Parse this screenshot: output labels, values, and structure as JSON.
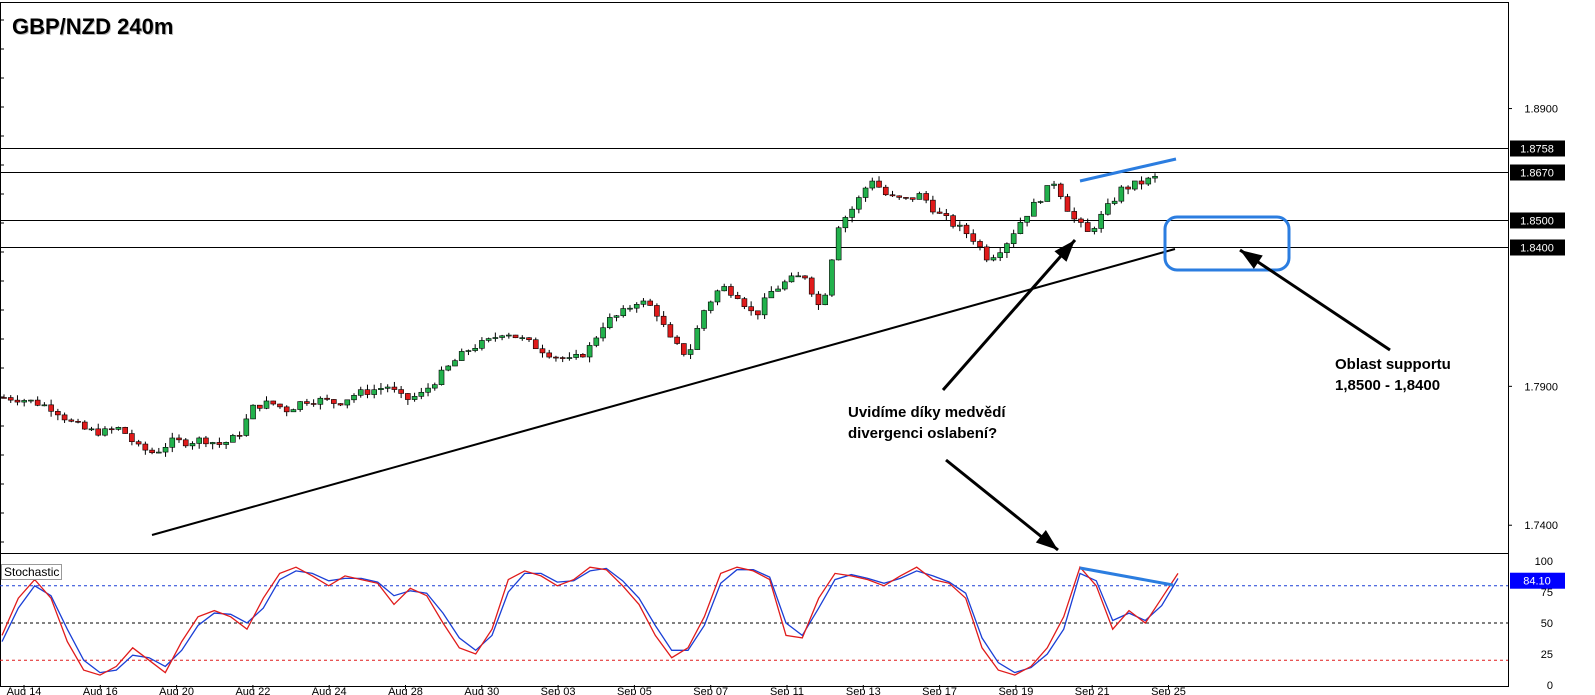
{
  "title": "GBP/NZD 240m",
  "indicator_label": "Stochastic",
  "annotations": {
    "divergence_line1": "Uvidíme díky medvědí",
    "divergence_line2": "divergenci oslabení?",
    "support_line1": "Oblast supportu",
    "support_line2": "1,8500 - 1,8400"
  },
  "colors": {
    "bull_candle": "#22b14c",
    "bear_candle": "#e01b1b",
    "highlight": "#2b7de0",
    "stoch_k": "#e01b1b",
    "stoch_d": "#1a3fd6",
    "price_box": "#000000",
    "stoch_box": "#0000ff"
  },
  "chart_data": {
    "type": "candlestick",
    "x_tick_labels": [
      "Aug 14",
      "Aug 16",
      "Aug 20",
      "Aug 22",
      "Aug 24",
      "Aug 28",
      "Aug 30",
      "Sep 03",
      "Sep 05",
      "Sep 07",
      "Sep 11",
      "Sep 13",
      "Sep 17",
      "Sep 19",
      "Sep 21",
      "Sep 25"
    ],
    "y_ticks": [
      "1.8900",
      "1.7900",
      "1.7400"
    ],
    "y_range": [
      1.73,
      1.928
    ],
    "level_lines": [
      {
        "value": 1.8758,
        "label": "1.8758"
      },
      {
        "value": 1.867,
        "label": "1.8670"
      },
      {
        "value": 1.85,
        "label": "1.8500"
      },
      {
        "value": 1.84,
        "label": "1.8400"
      }
    ],
    "close_path": [
      1.786,
      1.7855,
      1.784,
      1.782,
      1.777,
      1.774,
      1.7735,
      1.775,
      1.768,
      1.766,
      1.77,
      1.77,
      1.771,
      1.769,
      1.772,
      1.783,
      1.784,
      1.7815,
      1.785,
      1.785,
      1.784,
      1.787,
      1.7885,
      1.79,
      1.785,
      1.787,
      1.793,
      1.799,
      1.804,
      1.806,
      1.81,
      1.807,
      1.804,
      1.801,
      1.799,
      1.803,
      1.813,
      1.816,
      1.821,
      1.818,
      1.806,
      1.801,
      1.818,
      1.826,
      1.823,
      1.815,
      1.824,
      1.828,
      1.83,
      1.817,
      1.848,
      1.855,
      1.865,
      1.858,
      1.857,
      1.859,
      1.852,
      1.848,
      1.844,
      1.836,
      1.841,
      1.85,
      1.857,
      1.864,
      1.851,
      1.845,
      1.853,
      1.861,
      1.863,
      1.865
    ],
    "stochastic": {
      "range": [
        0,
        100
      ],
      "ticks": [
        "100",
        "75",
        "50",
        "25",
        "0"
      ],
      "levels": [
        80,
        50,
        20
      ],
      "k": [
        40,
        70,
        85,
        70,
        35,
        12,
        8,
        15,
        30,
        20,
        10,
        35,
        55,
        60,
        55,
        45,
        70,
        90,
        95,
        88,
        80,
        88,
        85,
        82,
        65,
        78,
        72,
        50,
        30,
        25,
        45,
        85,
        92,
        88,
        80,
        85,
        95,
        93,
        80,
        65,
        40,
        22,
        30,
        55,
        90,
        95,
        92,
        85,
        40,
        38,
        70,
        90,
        88,
        85,
        80,
        88,
        95,
        85,
        82,
        70,
        30,
        12,
        8,
        15,
        30,
        55,
        95,
        80,
        45,
        60,
        50,
        70,
        90
      ],
      "d": [
        35,
        62,
        80,
        72,
        45,
        20,
        10,
        12,
        24,
        22,
        15,
        28,
        48,
        58,
        57,
        50,
        62,
        85,
        92,
        90,
        84,
        86,
        86,
        83,
        72,
        76,
        74,
        58,
        38,
        28,
        40,
        75,
        90,
        90,
        83,
        84,
        92,
        94,
        84,
        70,
        48,
        28,
        28,
        48,
        82,
        93,
        93,
        87,
        50,
        40,
        62,
        85,
        89,
        86,
        82,
        86,
        92,
        88,
        83,
        74,
        38,
        18,
        10,
        14,
        25,
        45,
        90,
        84,
        52,
        58,
        52,
        64,
        86
      ],
      "current_label": "84.10"
    }
  }
}
